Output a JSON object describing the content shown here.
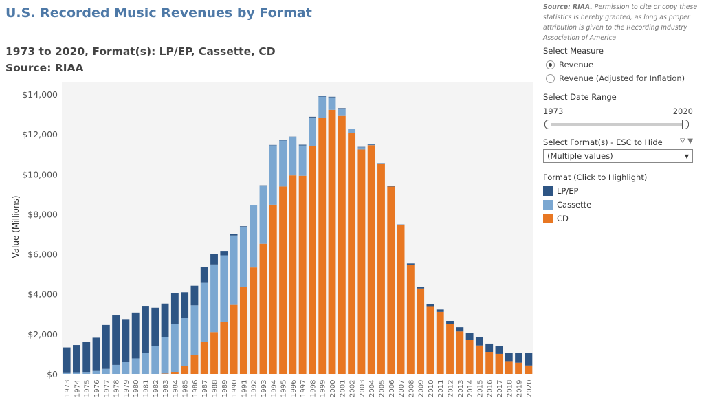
{
  "title": "U.S. Recorded Music Revenues by Format",
  "subtitle": "1973 to 2020, Format(s): LP/EP, Cassette, CD",
  "source": "Source: RIAA",
  "side": {
    "note_bold": "Source: RIAA.",
    "note": " Permission to cite or copy these statistics is hereby granted, as long as proper attribution is given to the Recording Industry Association of America",
    "measure_label": "Select Measure",
    "measures": [
      {
        "label": "Revenue",
        "selected": true
      },
      {
        "label": "Revenue (Adjusted for Inflation)",
        "selected": false
      }
    ],
    "date_label": "Select Date Range",
    "date_start": "1973",
    "date_end": "2020",
    "format_label": "Select Format(s) - ESC to Hide",
    "format_value": "(Multiple values)",
    "legend_title": "Format (Click to Highlight)"
  },
  "chart_data": {
    "type": "bar",
    "stacked": true,
    "ylabel": "Value (Millions)",
    "ylim": [
      0,
      14000
    ],
    "yticks": [
      0,
      2000,
      4000,
      6000,
      8000,
      10000,
      12000,
      14000
    ],
    "ytick_labels": [
      "$0",
      "$2,000",
      "$4,000",
      "$6,000",
      "$8,000",
      "$10,000",
      "$12,000",
      "$14,000"
    ],
    "categories": [
      "1973",
      "1974",
      "1975",
      "1976",
      "1977",
      "1978",
      "1979",
      "1980",
      "1981",
      "1982",
      "1983",
      "1984",
      "1985",
      "1986",
      "1987",
      "1988",
      "1989",
      "1990",
      "1991",
      "1992",
      "1993",
      "1994",
      "1995",
      "1996",
      "1997",
      "1998",
      "1999",
      "2000",
      "2001",
      "2002",
      "2003",
      "2004",
      "2005",
      "2006",
      "2007",
      "2008",
      "2009",
      "2010",
      "2011",
      "2012",
      "2013",
      "2014",
      "2015",
      "2016",
      "2017",
      "2018",
      "2019",
      "2020"
    ],
    "series": [
      {
        "name": "CD",
        "color": "#e87722",
        "values": [
          0,
          0,
          0,
          0,
          0,
          0,
          0,
          0,
          0,
          0,
          17,
          103,
          390,
          930,
          1594,
          2090,
          2588,
          3452,
          4338,
          5327,
          6511,
          8465,
          9377,
          9935,
          9915,
          11416,
          12816,
          13215,
          12909,
          12044,
          11233,
          11447,
          10520,
          9373,
          7452,
          5471,
          4274,
          3389,
          3101,
          2486,
          2123,
          1720,
          1420,
          1100,
          1000,
          640,
          560,
          420
        ]
      },
      {
        "name": "Cassette",
        "color": "#7ba7d1",
        "values": [
          76,
          87,
          98,
          146,
          250,
          450,
          604,
          776,
          1062,
          1385,
          1811,
          2384,
          2412,
          2500,
          2960,
          3385,
          3346,
          3472,
          3020,
          3116,
          2916,
          2977,
          2304,
          1905,
          1523,
          1419,
          1062,
          626,
          363,
          210,
          108,
          24,
          13,
          3,
          0,
          0,
          0,
          0,
          0,
          0,
          0,
          0,
          0,
          0,
          0,
          0,
          0,
          0
        ]
      },
      {
        "name": "LP/EP",
        "color": "#2e5584",
        "values": [
          1246,
          1356,
          1485,
          1663,
          2196,
          2473,
          2136,
          2291,
          2342,
          1925,
          1689,
          1548,
          1281,
          983,
          793,
          532,
          220,
          87,
          29,
          14,
          11,
          18,
          25,
          36,
          33,
          34,
          32,
          28,
          27,
          21,
          22,
          19,
          14,
          16,
          23,
          56,
          60,
          89,
          120,
          163,
          211,
          315,
          416,
          415,
          391,
          417,
          497,
          626
        ]
      }
    ],
    "legend": "right",
    "grid": false
  }
}
